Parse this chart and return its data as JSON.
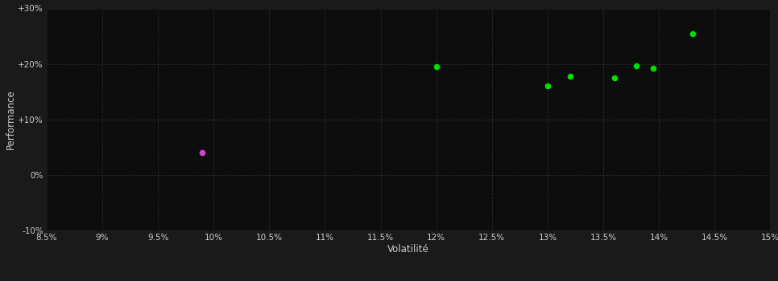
{
  "background_color": "#1a1a1a",
  "plot_bg_color": "#0d0d0d",
  "grid_color": "#2a2a2a",
  "text_color": "#cccccc",
  "xlabel": "Volatilité",
  "ylabel": "Performance",
  "xlim": [
    0.085,
    0.15
  ],
  "ylim": [
    -0.1,
    0.3
  ],
  "xticks": [
    0.085,
    0.09,
    0.095,
    0.1,
    0.105,
    0.11,
    0.115,
    0.12,
    0.125,
    0.13,
    0.135,
    0.14,
    0.145,
    0.15
  ],
  "yticks": [
    -0.1,
    0.0,
    0.1,
    0.2,
    0.3
  ],
  "ytick_labels": [
    "-10%",
    "0%",
    "+10%",
    "+20%",
    "+30%"
  ],
  "xtick_labels": [
    "8.5%",
    "9%",
    "9.5%",
    "10%",
    "10.5%",
    "11%",
    "11.5%",
    "12%",
    "12.5%",
    "13%",
    "13.5%",
    "14%",
    "14.5%",
    "15%"
  ],
  "green_points": [
    [
      0.12,
      0.195
    ],
    [
      0.13,
      0.16
    ],
    [
      0.132,
      0.178
    ],
    [
      0.136,
      0.175
    ],
    [
      0.138,
      0.196
    ],
    [
      0.1395,
      0.192
    ],
    [
      0.143,
      0.255
    ]
  ],
  "magenta_points": [
    [
      0.099,
      0.04
    ]
  ],
  "green_color": "#00dd00",
  "magenta_color": "#cc44cc",
  "marker_size": 4.5
}
